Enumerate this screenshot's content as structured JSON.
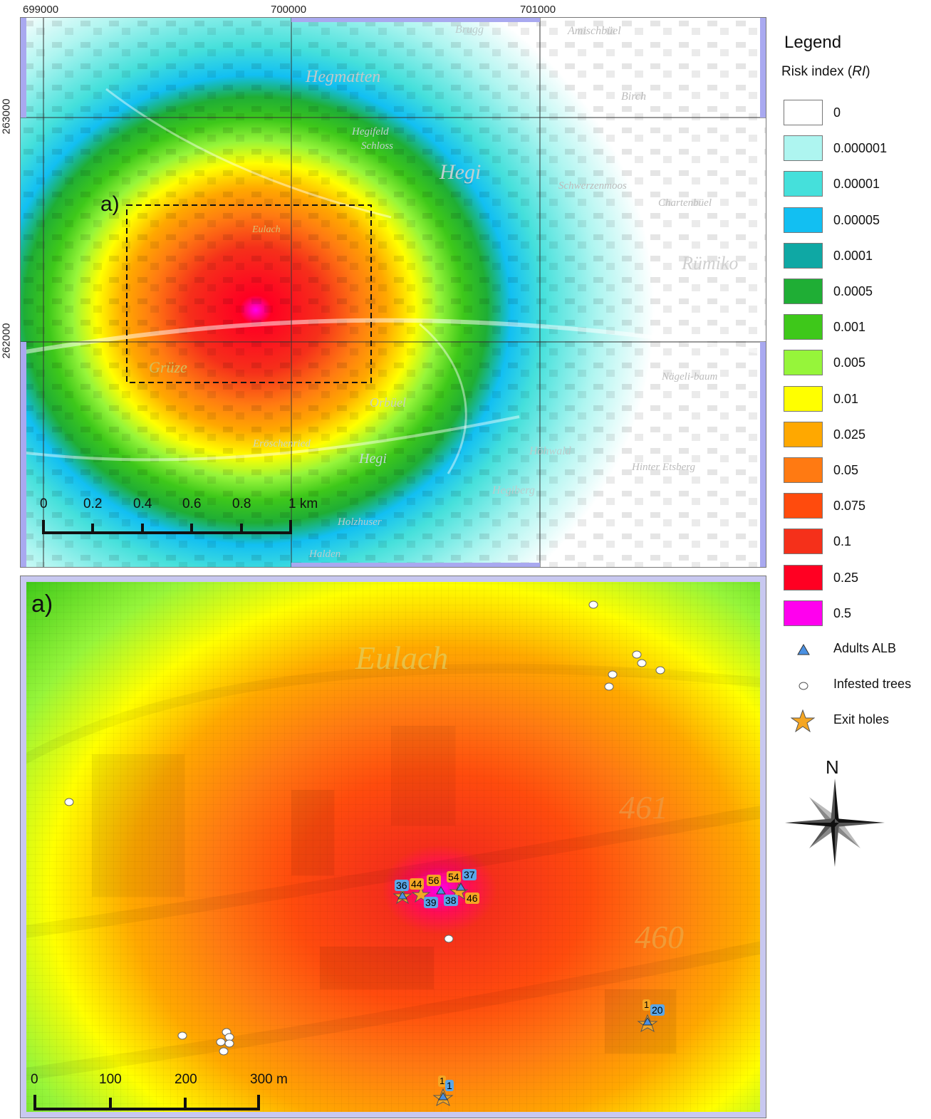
{
  "top_map": {
    "x_ticks": [
      "699000",
      "700000",
      "701000"
    ],
    "y_ticks": [
      "263000",
      "262000"
    ],
    "place_names": [
      "Hegmatten",
      "Hegi",
      "Rümiko",
      "Grüze",
      "Orbüel",
      "Hegi",
      "Amischbüel",
      "Birch",
      "Brugg",
      "Schwerzenmoos",
      "Chartenbüel",
      "Nägeli-baum",
      "Hinter Etsberg",
      "Hegiberg",
      "Holzhuser",
      "Halden",
      "Eulach",
      "Eröschenried",
      "Hegifeld",
      "Schloss",
      "Höhwald"
    ],
    "inset_label": "a)",
    "scale_ticks": [
      "0",
      "0.2",
      "0.4",
      "0.6",
      "0.8",
      "1 km"
    ]
  },
  "bottom_map": {
    "inset_label": "a)",
    "place_names": [
      "Eulach",
      "461",
      "460"
    ],
    "scale_ticks": [
      "0",
      "100",
      "200",
      "300 m"
    ],
    "cluster_labels": [
      {
        "text": "36",
        "kind": "adult"
      },
      {
        "text": "44",
        "kind": "exit"
      },
      {
        "text": "56",
        "kind": "exit"
      },
      {
        "text": "54",
        "kind": "exit"
      },
      {
        "text": "37",
        "kind": "adult"
      },
      {
        "text": "39",
        "kind": "adult"
      },
      {
        "text": "38",
        "kind": "adult"
      },
      {
        "text": "46",
        "kind": "exit"
      }
    ],
    "se_labels": [
      {
        "text": "1",
        "kind": "exit"
      },
      {
        "text": "20",
        "kind": "adult"
      }
    ],
    "s_labels": [
      {
        "text": "1",
        "kind": "exit"
      },
      {
        "text": "1",
        "kind": "adult"
      }
    ]
  },
  "legend": {
    "title": "Legend",
    "subtitle_prefix": "Risk index (",
    "subtitle_var": "RI",
    "subtitle_suffix": ")",
    "classes": [
      {
        "label": "0",
        "color": "#ffffff"
      },
      {
        "label": "0.000001",
        "color": "#aef5f0"
      },
      {
        "label": "0.00001",
        "color": "#45e0db"
      },
      {
        "label": "0.00005",
        "color": "#12bff2"
      },
      {
        "label": "0.0001",
        "color": "#0fa8a4"
      },
      {
        "label": "0.0005",
        "color": "#1fae35"
      },
      {
        "label": "0.001",
        "color": "#3ec81a"
      },
      {
        "label": "0.005",
        "color": "#96f53a"
      },
      {
        "label": "0.01",
        "color": "#ffff00"
      },
      {
        "label": "0.025",
        "color": "#ffa800"
      },
      {
        "label": "0.05",
        "color": "#ff7a12"
      },
      {
        "label": "0.075",
        "color": "#ff4b0d"
      },
      {
        "label": "0.1",
        "color": "#f5301a"
      },
      {
        "label": "0.25",
        "color": "#ff0022"
      },
      {
        "label": "0.5",
        "color": "#ff00ee"
      }
    ],
    "symbols": [
      {
        "label": "Adults ALB",
        "icon": "triangle-icon"
      },
      {
        "label": "Infested trees",
        "icon": "circle-icon"
      },
      {
        "label": "Exit holes",
        "icon": "star-icon"
      }
    ],
    "north_label": "N"
  }
}
